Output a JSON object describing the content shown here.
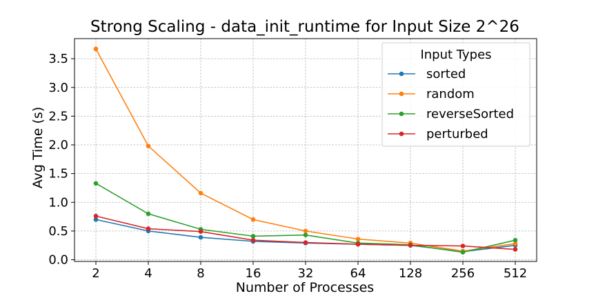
{
  "chart_data": {
    "type": "line",
    "title": "Strong Scaling - data_init_runtime for Input Size 2^26",
    "xlabel": "Number of Processes",
    "ylabel": "Avg Time (s)",
    "x": [
      "2",
      "4",
      "8",
      "16",
      "32",
      "64",
      "128",
      "256",
      "512"
    ],
    "x_scale": "log2",
    "ylim": [
      -0.03,
      3.85
    ],
    "yticks": [
      "0.0",
      "0.5",
      "1.0",
      "1.5",
      "2.0",
      "2.5",
      "3.0",
      "3.5"
    ],
    "grid": true,
    "legend": {
      "title": "Input Types",
      "placement": "top-right"
    },
    "series": [
      {
        "name": "sorted",
        "color": "#1f77b4",
        "values": [
          0.7,
          0.5,
          0.39,
          0.32,
          0.29,
          0.27,
          0.25,
          0.14,
          0.25
        ]
      },
      {
        "name": "random",
        "color": "#ff7f0e",
        "values": [
          3.67,
          1.98,
          1.16,
          0.7,
          0.5,
          0.36,
          0.29,
          0.15,
          0.28
        ]
      },
      {
        "name": "reverseSorted",
        "color": "#2ca02c",
        "values": [
          1.33,
          0.8,
          0.53,
          0.41,
          0.43,
          0.29,
          0.26,
          0.13,
          0.34
        ]
      },
      {
        "name": "perturbed",
        "color": "#d62728",
        "values": [
          0.76,
          0.54,
          0.49,
          0.34,
          0.3,
          0.27,
          0.25,
          0.24,
          0.18
        ]
      }
    ]
  }
}
